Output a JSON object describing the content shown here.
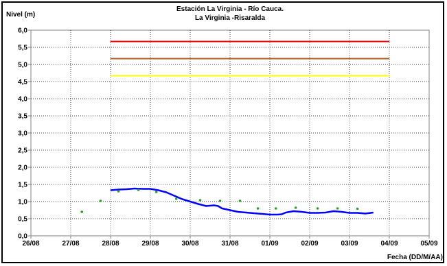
{
  "chart_data": {
    "type": "line",
    "title": "Estación La Virginia  - Río Cauca.",
    "subtitle": "La Virginia -Risaralda",
    "ylabel": "Nivel (m)",
    "xlabel": "Fecha (DD/M/AA)",
    "ylim": [
      0,
      6
    ],
    "yticks": [
      "0,0",
      "0,5",
      "1,0",
      "1,5",
      "2,0",
      "2,5",
      "3,0",
      "3,5",
      "4,0",
      "4,5",
      "5,0",
      "5,5",
      "6,0"
    ],
    "xticks": [
      "26/08",
      "27/08",
      "28/08",
      "29/08",
      "30/08",
      "31/08",
      "01/09",
      "02/09",
      "03/09",
      "04/09",
      "05/09"
    ],
    "grid": true,
    "legend": "none",
    "thresholds": [
      {
        "value": 5.67,
        "color": "#ff0000",
        "x_from": 2.0,
        "x_to": 9.0
      },
      {
        "value": 5.17,
        "color": "#b35a1f",
        "x_from": 2.0,
        "x_to": 9.0
      },
      {
        "value": 4.67,
        "color": "#ffff00",
        "x_from": 2.0,
        "x_to": 9.0
      }
    ],
    "series": [
      {
        "color": "#0000ff",
        "style": "line",
        "x": [
          2.0,
          2.2,
          2.4,
          2.6,
          2.8,
          3.0,
          3.2,
          3.4,
          3.6,
          3.8,
          4.0,
          4.2,
          4.4,
          4.6,
          4.7,
          4.8,
          5.0,
          5.2,
          5.4,
          5.6,
          5.8,
          6.0,
          6.2,
          6.3,
          6.4,
          6.6,
          6.8,
          7.0,
          7.2,
          7.4,
          7.6,
          7.8,
          8.0,
          8.2,
          8.4,
          8.6
        ],
        "values": [
          1.33,
          1.35,
          1.36,
          1.38,
          1.37,
          1.37,
          1.33,
          1.27,
          1.17,
          1.07,
          1.0,
          0.93,
          0.87,
          0.89,
          0.87,
          0.8,
          0.75,
          0.7,
          0.68,
          0.66,
          0.64,
          0.62,
          0.62,
          0.63,
          0.68,
          0.72,
          0.7,
          0.67,
          0.67,
          0.68,
          0.72,
          0.7,
          0.67,
          0.67,
          0.65,
          0.68
        ]
      },
      {
        "color": "#2ca02c",
        "style": "points",
        "x": [
          1.28,
          1.75,
          2.2,
          2.7,
          3.15,
          3.65,
          4.25,
          4.75,
          5.25,
          5.7,
          6.15,
          6.65,
          7.2,
          7.7,
          8.2
        ],
        "values": [
          0.7,
          1.02,
          1.3,
          1.34,
          1.28,
          1.08,
          1.04,
          1.02,
          1.02,
          0.8,
          0.8,
          0.82,
          0.8,
          0.8,
          0.79
        ]
      }
    ],
    "xlim": [
      0,
      10
    ]
  }
}
